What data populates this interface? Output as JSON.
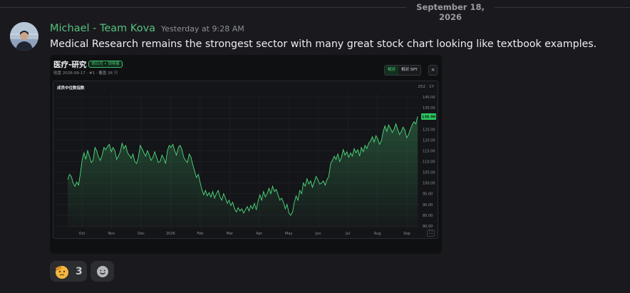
{
  "divider": {
    "date": "September 18, 2026"
  },
  "message": {
    "author": "Michael - Team Kova",
    "timestamp": "Yesterday at 9:28 AM",
    "text": "Medical Research remains the strongest sector with many great stock chart looking like textbook examples.",
    "author_color": "#56c07d"
  },
  "embed": {
    "title": "医疗-研究",
    "badge": "领日月 • 领导股",
    "subtitle": "收盘 2026-09-17 · #1 · 覆盖 26 只",
    "segments": [
      "相对",
      "相对 SPY"
    ],
    "active_segment": "相对",
    "close_label": "×",
    "chart_title": "成员中位数指数",
    "chart_range": "252 · 1Y",
    "expand_label": "⛶"
  },
  "chart_data": {
    "type": "area",
    "title": "成员中位数指数",
    "xlabel": "",
    "ylabel": "",
    "x_ticks": [
      "Oct",
      "Nov",
      "Dec",
      "2026",
      "Feb",
      "Mar",
      "Apr",
      "May",
      "Jun",
      "Jul",
      "Aug",
      "Sep"
    ],
    "y_ticks": [
      80,
      85,
      90,
      95,
      100,
      105,
      110,
      115,
      120,
      125,
      130,
      135,
      140
    ],
    "y_tick_labels": [
      "80.00",
      "85.00",
      "90.00",
      "95.00",
      "100.00",
      "105.00",
      "110.00",
      "115.00",
      "120.00",
      "125.00",
      "130.00",
      "135.00",
      "140.00"
    ],
    "ylim": [
      79,
      142
    ],
    "last_value_label": "130.90",
    "last_value": 130.9,
    "line_color": "#4ddb7c",
    "grid": true,
    "series": [
      {
        "values": [
          101.5,
          104.0,
          103.0,
          100.0,
          98.5,
          100.5,
          99.0,
          104.5,
          111.0,
          114.0,
          111.0,
          115.0,
          112.5,
          109.5,
          110.5,
          116.5,
          115.0,
          112.0,
          110.5,
          113.0,
          116.5,
          115.5,
          117.0,
          118.0,
          114.5,
          116.5,
          115.0,
          111.0,
          112.5,
          114.5,
          118.5,
          116.0,
          117.5,
          114.0,
          113.0,
          111.5,
          113.5,
          110.0,
          109.0,
          112.0,
          117.5,
          116.0,
          114.0,
          112.5,
          115.0,
          113.0,
          110.5,
          112.0,
          114.5,
          112.0,
          109.5,
          110.0,
          113.0,
          111.5,
          109.0,
          115.0,
          117.5,
          116.5,
          118.0,
          115.0,
          113.0,
          116.5,
          117.5,
          115.5,
          112.0,
          110.5,
          109.5,
          113.5,
          112.0,
          108.5,
          105.5,
          102.5,
          104.0,
          100.5,
          97.0,
          94.5,
          96.5,
          94.0,
          95.5,
          93.5,
          96.0,
          93.0,
          95.0,
          96.5,
          93.5,
          92.0,
          95.0,
          93.0,
          90.5,
          92.0,
          89.5,
          91.0,
          88.0,
          86.5,
          88.5,
          87.0,
          88.0,
          86.0,
          87.5,
          89.0,
          87.0,
          89.5,
          88.0,
          90.5,
          87.5,
          91.5,
          94.5,
          92.0,
          96.0,
          93.5,
          95.0,
          97.5,
          95.0,
          98.5,
          96.0,
          97.0,
          94.5,
          92.0,
          93.0,
          91.0,
          88.0,
          90.0,
          86.0,
          85.0,
          86.5,
          91.0,
          94.0,
          92.0,
          96.5,
          95.0,
          100.0,
          98.5,
          102.0,
          99.5,
          101.0,
          98.0,
          100.5,
          103.0,
          101.5,
          99.5,
          100.0,
          101.0,
          99.0,
          101.5,
          103.0,
          109.0,
          110.5,
          112.5,
          111.0,
          113.5,
          110.0,
          112.0,
          115.5,
          113.0,
          114.5,
          112.0,
          114.0,
          112.5,
          116.0,
          114.0,
          115.5,
          112.5,
          116.5,
          114.5,
          117.5,
          116.0,
          118.5,
          119.5,
          121.5,
          119.0,
          122.0,
          120.5,
          118.0,
          119.5,
          124.0,
          126.5,
          124.0,
          127.0,
          125.5,
          123.5,
          125.0,
          127.5,
          125.0,
          122.5,
          124.0,
          126.0,
          124.5,
          121.0,
          122.5,
          125.0,
          127.0,
          128.5,
          127.5,
          130.9
        ]
      }
    ]
  },
  "reactions": [
    {
      "count": "3",
      "icon": "saluting-face-emoji"
    },
    {
      "icon": "add-reaction-icon"
    }
  ]
}
